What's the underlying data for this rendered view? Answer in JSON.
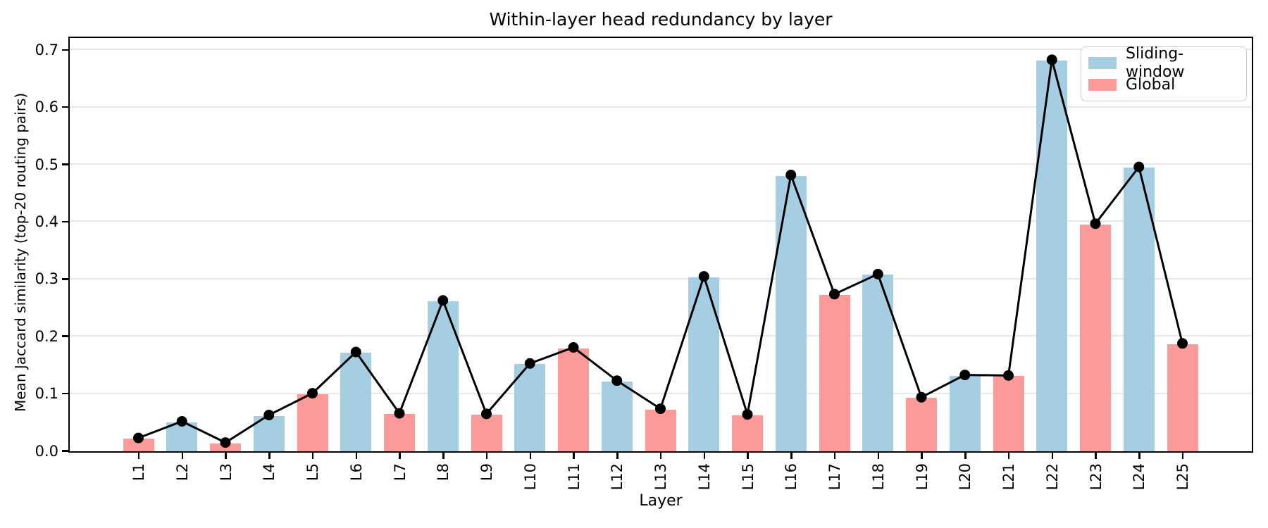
{
  "title": "Within-layer head redundancy by layer",
  "colors": {
    "sliding_window": "#a6cee3",
    "global": "#fb9a99",
    "line": "#000000",
    "grid": "#e7e7e7",
    "axis": "#000000",
    "background": "#ffffff",
    "legend_border": "#cccccc"
  },
  "legend": {
    "position": "upper right",
    "items": [
      {
        "label": "Sliding-window",
        "color": "#a6cee3",
        "group": "sliding_window"
      },
      {
        "label": "Global",
        "color": "#fb9a99",
        "group": "global"
      }
    ]
  },
  "chart_data": {
    "type": "bar",
    "overlay": "line-with-markers",
    "title": "Within-layer head redundancy by layer",
    "xlabel": "Layer",
    "ylabel": "Mean Jaccard similarity (top-20 routing pairs)",
    "categories": [
      "L1",
      "L2",
      "L3",
      "L4",
      "L5",
      "L6",
      "L7",
      "L8",
      "L9",
      "L10",
      "L11",
      "L12",
      "L13",
      "L14",
      "L15",
      "L16",
      "L17",
      "L18",
      "L19",
      "L20",
      "L21",
      "L22",
      "L23",
      "L24",
      "L25"
    ],
    "values": [
      0.022,
      0.051,
      0.014,
      0.062,
      0.1,
      0.172,
      0.065,
      0.262,
      0.064,
      0.152,
      0.18,
      0.122,
      0.073,
      0.304,
      0.063,
      0.481,
      0.273,
      0.308,
      0.093,
      0.132,
      0.131,
      0.682,
      0.396,
      0.495,
      0.187
    ],
    "groups": [
      "Global",
      "Sliding-window",
      "Global",
      "Sliding-window",
      "Global",
      "Sliding-window",
      "Global",
      "Sliding-window",
      "Global",
      "Sliding-window",
      "Global",
      "Sliding-window",
      "Global",
      "Sliding-window",
      "Global",
      "Sliding-window",
      "Global",
      "Sliding-window",
      "Global",
      "Sliding-window",
      "Global",
      "Sliding-window",
      "Global",
      "Sliding-window",
      "Global"
    ],
    "group_colors": {
      "Sliding-window": "#a6cee3",
      "Global": "#fb9a99"
    },
    "line_values_equal_bar_values": true,
    "line_color": "#000000",
    "marker": "circle",
    "yticks": [
      0.0,
      0.1,
      0.2,
      0.3,
      0.4,
      0.5,
      0.6,
      0.7
    ],
    "ytick_labels": [
      "0.0",
      "0.1",
      "0.2",
      "0.3",
      "0.4",
      "0.5",
      "0.6",
      "0.7"
    ],
    "ylim": [
      0,
      0.72
    ],
    "grid": "horizontal",
    "legend_position": "upper right"
  }
}
